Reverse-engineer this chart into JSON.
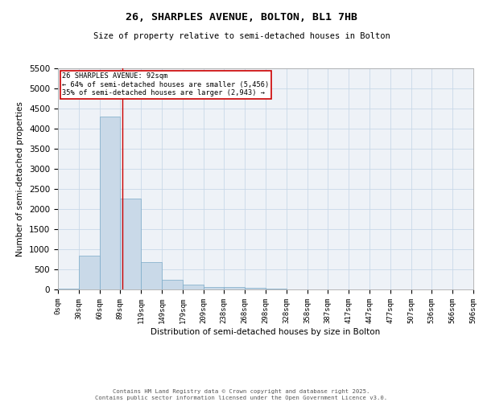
{
  "title_line1": "26, SHARPLES AVENUE, BOLTON, BL1 7HB",
  "title_line2": "Size of property relative to semi-detached houses in Bolton",
  "xlabel": "Distribution of semi-detached houses by size in Bolton",
  "ylabel": "Number of semi-detached properties",
  "bin_edges": [
    0,
    30,
    60,
    89,
    119,
    149,
    179,
    209,
    238,
    268,
    298,
    328,
    358,
    387,
    417,
    447,
    477,
    507,
    536,
    566,
    596
  ],
  "bin_heights": [
    30,
    850,
    4300,
    2250,
    680,
    250,
    120,
    70,
    65,
    50,
    30,
    5,
    3,
    2,
    1,
    1,
    1,
    0,
    0,
    0
  ],
  "bar_color": "#c9d9e8",
  "bar_edgecolor": "#7aaac8",
  "property_size": 92,
  "property_line_color": "#cc0000",
  "annotation_text": "26 SHARPLES AVENUE: 92sqm\n← 64% of semi-detached houses are smaller (5,456)\n35% of semi-detached houses are larger (2,943) →",
  "annotation_box_color": "#cc0000",
  "ylim": [
    0,
    5500
  ],
  "yticks": [
    0,
    500,
    1000,
    1500,
    2000,
    2500,
    3000,
    3500,
    4000,
    4500,
    5000,
    5500
  ],
  "grid_color": "#c8d8e8",
  "background_color": "#eef2f7",
  "footer_line1": "Contains HM Land Registry data © Crown copyright and database right 2025.",
  "footer_line2": "Contains public sector information licensed under the Open Government Licence v3.0."
}
